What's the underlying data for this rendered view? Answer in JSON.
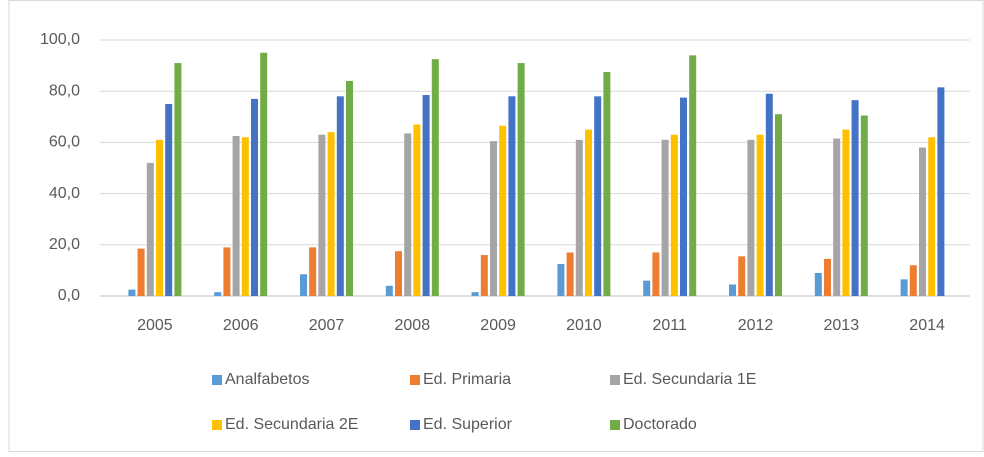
{
  "chart_data": {
    "type": "bar",
    "categories": [
      "2005",
      "2006",
      "2007",
      "2008",
      "2009",
      "2010",
      "2011",
      "2012",
      "2013",
      "2014"
    ],
    "series": [
      {
        "name": "Analfabetos",
        "color": "#5b9bd5",
        "values": [
          2.5,
          1.5,
          8.5,
          4,
          1.5,
          12.5,
          6,
          4.5,
          9,
          6.5
        ]
      },
      {
        "name": "Ed. Primaria",
        "color": "#ed7d31",
        "values": [
          18.5,
          19,
          19,
          17.5,
          16,
          17,
          17,
          15.5,
          14.5,
          12
        ]
      },
      {
        "name": "Ed. Secundaria 1E",
        "color": "#a5a5a5",
        "values": [
          52,
          62.5,
          63,
          63.5,
          60.5,
          61,
          61,
          61,
          61.5,
          58
        ]
      },
      {
        "name": "Ed. Secundaria 2E",
        "color": "#ffc000",
        "values": [
          61,
          62,
          64,
          67,
          66.5,
          65,
          63,
          63,
          65,
          62
        ]
      },
      {
        "name": "Ed. Superior",
        "color": "#4472c4",
        "values": [
          75,
          77,
          78,
          78.5,
          78,
          78,
          77.5,
          79,
          76.5,
          81.5
        ]
      },
      {
        "name": "Doctorado",
        "color": "#70ad47",
        "values": [
          91,
          95,
          84,
          92.5,
          91,
          87.5,
          94,
          71,
          70.5,
          null
        ]
      }
    ],
    "ylim": [
      0,
      100
    ],
    "yticks": [
      {
        "value": 0,
        "label": "0,0"
      },
      {
        "value": 20,
        "label": "20,0"
      },
      {
        "value": 40,
        "label": "40,0"
      },
      {
        "value": 60,
        "label": "60,0"
      },
      {
        "value": 80,
        "label": "80,0"
      },
      {
        "value": 100,
        "label": "100,0"
      }
    ],
    "grid": true,
    "legend": "bottom"
  }
}
